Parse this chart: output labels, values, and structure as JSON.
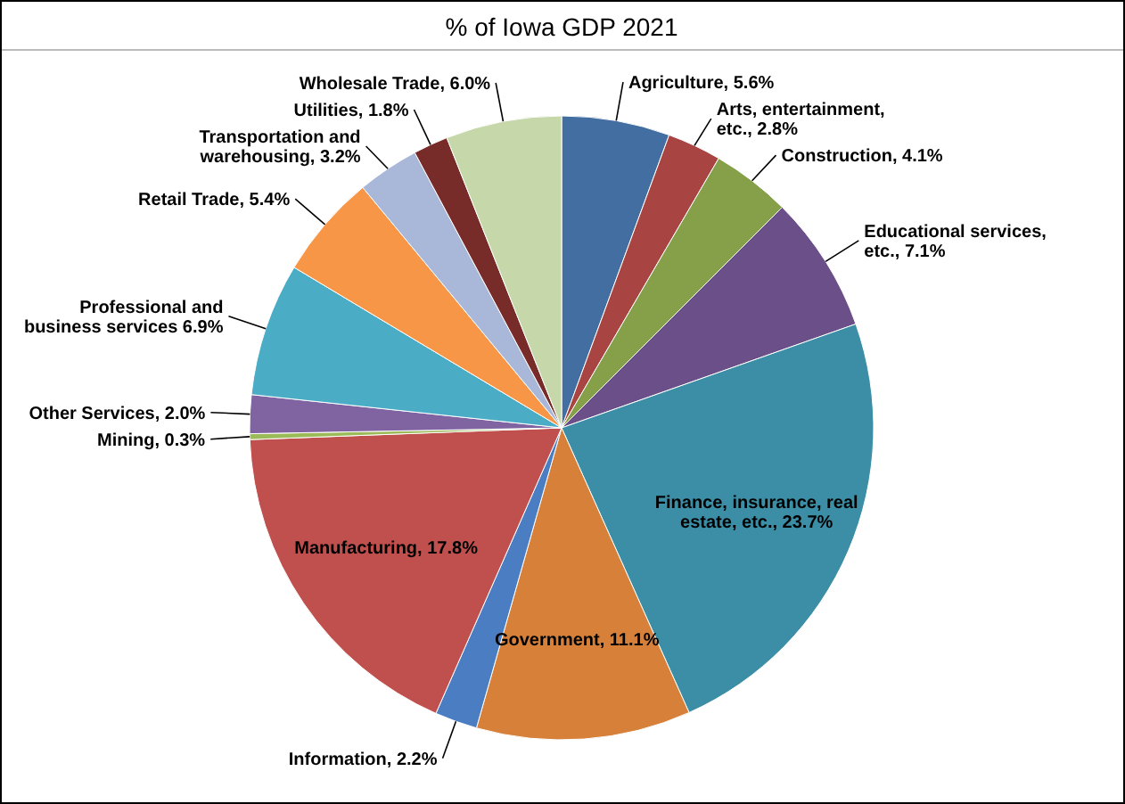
{
  "chart_data": {
    "type": "pie",
    "title": "% of Iowa GDP 2021",
    "categories": [
      "Agriculture",
      "Arts, entertainment, etc.",
      "Construction",
      "Educational services, etc.",
      "Finance, insurance, real estate, etc.",
      "Government",
      "Information",
      "Manufacturing",
      "Mining",
      "Other Services",
      "Professional and business services",
      "Retail Trade",
      "Transportation and warehousing",
      "Utilities",
      "Wholesale Trade"
    ],
    "values": [
      5.6,
      2.8,
      4.1,
      7.1,
      23.7,
      11.1,
      2.2,
      17.8,
      0.3,
      2.0,
      6.9,
      5.4,
      3.2,
      1.8,
      6.0
    ],
    "colors": [
      "#436ea1",
      "#a84442",
      "#85a048",
      "#6a4f88",
      "#3b8ea5",
      "#d6803a",
      "#4a7dc2",
      "#c0504d",
      "#9bbb59",
      "#8064a2",
      "#4bacc6",
      "#f79646",
      "#a9b8d9",
      "#772c2a",
      "#c6d7a9"
    ],
    "value_labels": [
      ", 5.6%",
      ", 2.8%",
      ", 4.1%",
      ", 7.1%",
      ", 23.7%",
      ", 11.1%",
      ", 2.2%",
      ", 17.8%",
      ", 0.3%",
      ", 2.0%",
      " 6.9%",
      ", 5.4%",
      ", 3.2%",
      ", 1.8%",
      ", 6.0%"
    ]
  }
}
